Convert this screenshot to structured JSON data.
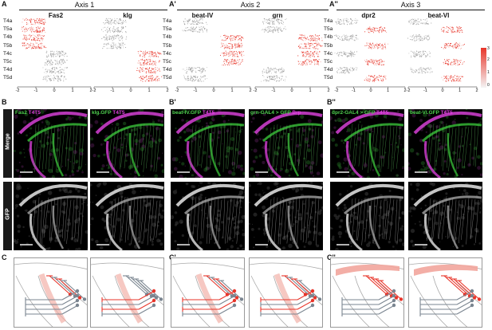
{
  "panel_letters": {
    "A": "A",
    "A1": "A'",
    "A2": "A''",
    "B": "B",
    "B1": "B'",
    "B2": "B''",
    "C": "C",
    "C1": "C'",
    "C2": "C''"
  },
  "axes": [
    {
      "title": "Axis 1",
      "genes": [
        "Fas2",
        "klg"
      ]
    },
    {
      "title": "Axis 2",
      "genes": [
        "beat-IV",
        "grn"
      ]
    },
    {
      "title": "Axis 3",
      "genes": [
        "dpr2",
        "beat-VI"
      ]
    }
  ],
  "cell_types": [
    "T4a",
    "T5a",
    "T4b",
    "T5b",
    "T4c",
    "T5c",
    "T4d",
    "T5d"
  ],
  "colorbar": {
    "ticks": [
      "0",
      "1",
      "2",
      "3"
    ],
    "low_color": "#f4f4f4",
    "high_color": "#e8352a"
  },
  "axis_ticks": [
    "-2",
    "-1",
    "0",
    "1",
    "2"
  ],
  "row_labels": {
    "merge": "Merge",
    "gfp": "GFP"
  },
  "micro_labels": [
    {
      "parts": [
        {
          "t": "Fas2",
          "c": "#4fd14f"
        },
        {
          "t": " T4T5",
          "c": "#e040e0"
        }
      ]
    },
    {
      "parts": [
        {
          "t": "klg.GFP",
          "c": "#4fd14f"
        },
        {
          "t": " T4T5",
          "c": "#e040e0"
        }
      ]
    },
    {
      "parts": [
        {
          "t": "beat-IV.GFP",
          "c": "#4fd14f"
        },
        {
          "t": " T4T5",
          "c": "#e040e0"
        }
      ]
    },
    {
      "parts": [
        {
          "t": "grn-GAL4 > GFP",
          "c": "#4fd14f"
        },
        {
          "t": " Brp",
          "c": "#e040e0"
        }
      ]
    },
    {
      "parts": [
        {
          "t": "dpr2-GAL4 > GFP",
          "c": "#4fd14f"
        },
        {
          "t": " T4T5",
          "c": "#e040e0"
        }
      ]
    },
    {
      "parts": [
        {
          "t": "beat-VI.GFP",
          "c": "#4fd14f"
        },
        {
          "t": " T4T5",
          "c": "#e040e0"
        }
      ]
    }
  ],
  "expression": {
    "Fas2": [
      1,
      1,
      1,
      1,
      0,
      0,
      0,
      0
    ],
    "klg": [
      0,
      0,
      0,
      0,
      1,
      1,
      1,
      1
    ],
    "beat-IV": [
      0,
      0,
      1,
      1,
      1,
      1,
      0,
      0
    ],
    "grn": [
      0,
      0,
      1,
      1,
      1,
      1,
      0,
      0
    ],
    "dpr2": [
      1,
      1,
      1,
      1,
      1,
      1,
      1,
      1
    ],
    "beat-VI": [
      1,
      1,
      1,
      1,
      1,
      1,
      1,
      1
    ]
  },
  "colors": {
    "red": "#e8352a",
    "gray": "#9a9a9a",
    "green": "#4fd14f",
    "magenta": "#e040e0"
  }
}
